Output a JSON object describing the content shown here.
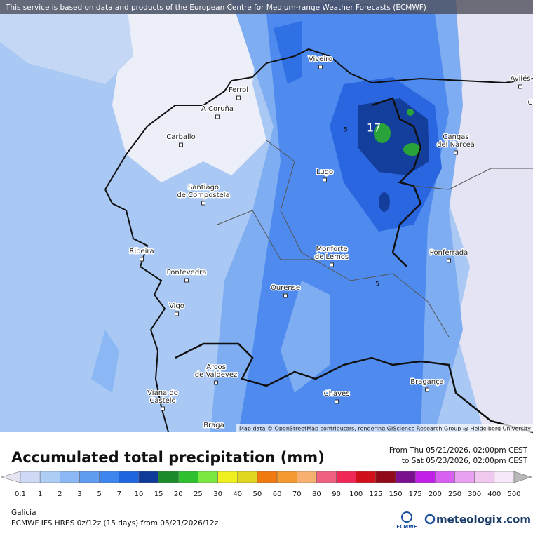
{
  "banner": "This service is based on data and products of the European Centre for Medium-range Weather Forecasts (ECMWF)",
  "map": {
    "places": [
      {
        "lines": [
          "Viveiro"
        ]
      },
      {
        "lines": [
          "Ferrol"
        ]
      },
      {
        "lines": [
          "A Coruña"
        ]
      },
      {
        "lines": [
          "Carballo"
        ]
      },
      {
        "lines": [
          "Santiago",
          "de Compostela"
        ]
      },
      {
        "lines": [
          "Lugo"
        ]
      },
      {
        "lines": [
          "Cangas",
          "del Narcea"
        ]
      },
      {
        "lines": [
          "Ribeira"
        ]
      },
      {
        "lines": [
          "Pontevedra"
        ]
      },
      {
        "lines": [
          "Vigo"
        ]
      },
      {
        "lines": [
          "Monforte",
          "de Lemos"
        ]
      },
      {
        "lines": [
          "Ponferrada"
        ]
      },
      {
        "lines": [
          "Ourense"
        ]
      },
      {
        "lines": [
          "Arcos",
          "de Valdevez"
        ]
      },
      {
        "lines": [
          "Viana do",
          "Castelo"
        ]
      },
      {
        "lines": [
          "Chaves"
        ]
      },
      {
        "lines": [
          "Bragança"
        ]
      },
      {
        "lines": [
          "Braga"
        ]
      },
      {
        "lines": [
          "Avilés"
        ]
      },
      {
        "lines": [
          "C"
        ]
      }
    ],
    "contour_labels": [
      17,
      5,
      5
    ],
    "attribution": "Map data © OpenStreetMap contributors, rendering GIScience Research Group @ Heidelberg University"
  },
  "legend": {
    "title": "Accumulated total precipitation (mm)",
    "from": "From Thu 05/21/2026, 02:00pm CEST",
    "to": "to Sat 05/23/2026, 02:00pm CEST",
    "levels": [
      0.1,
      1,
      2,
      3,
      5,
      7,
      10,
      15,
      20,
      25,
      30,
      40,
      50,
      60,
      70,
      80,
      90,
      100,
      125,
      150,
      175,
      200,
      250,
      300,
      400,
      500
    ],
    "colors": [
      "#e4e4f2",
      "#cfd8f5",
      "#aecdf5",
      "#8bb8f4",
      "#5f9cf0",
      "#3f85ee",
      "#1e66e0",
      "#0f3a99",
      "#1a8a2a",
      "#2fc030",
      "#7ae840",
      "#f0f020",
      "#e0d820",
      "#f07a10",
      "#f59a30",
      "#f8b070",
      "#f06080",
      "#f02858",
      "#d0101a",
      "#900a1a",
      "#7a1090",
      "#c020e8",
      "#d860f0",
      "#e8a0f0",
      "#f0c8f0",
      "#f6e8f8",
      "#b8b8b8"
    ]
  },
  "footer": {
    "region": "Galicia",
    "model": "ECMWF IFS HRES 0z/12z (15 days) from  05/21/2026/12z",
    "ecmwf": "ECMWF",
    "brand": "meteologix.com"
  }
}
